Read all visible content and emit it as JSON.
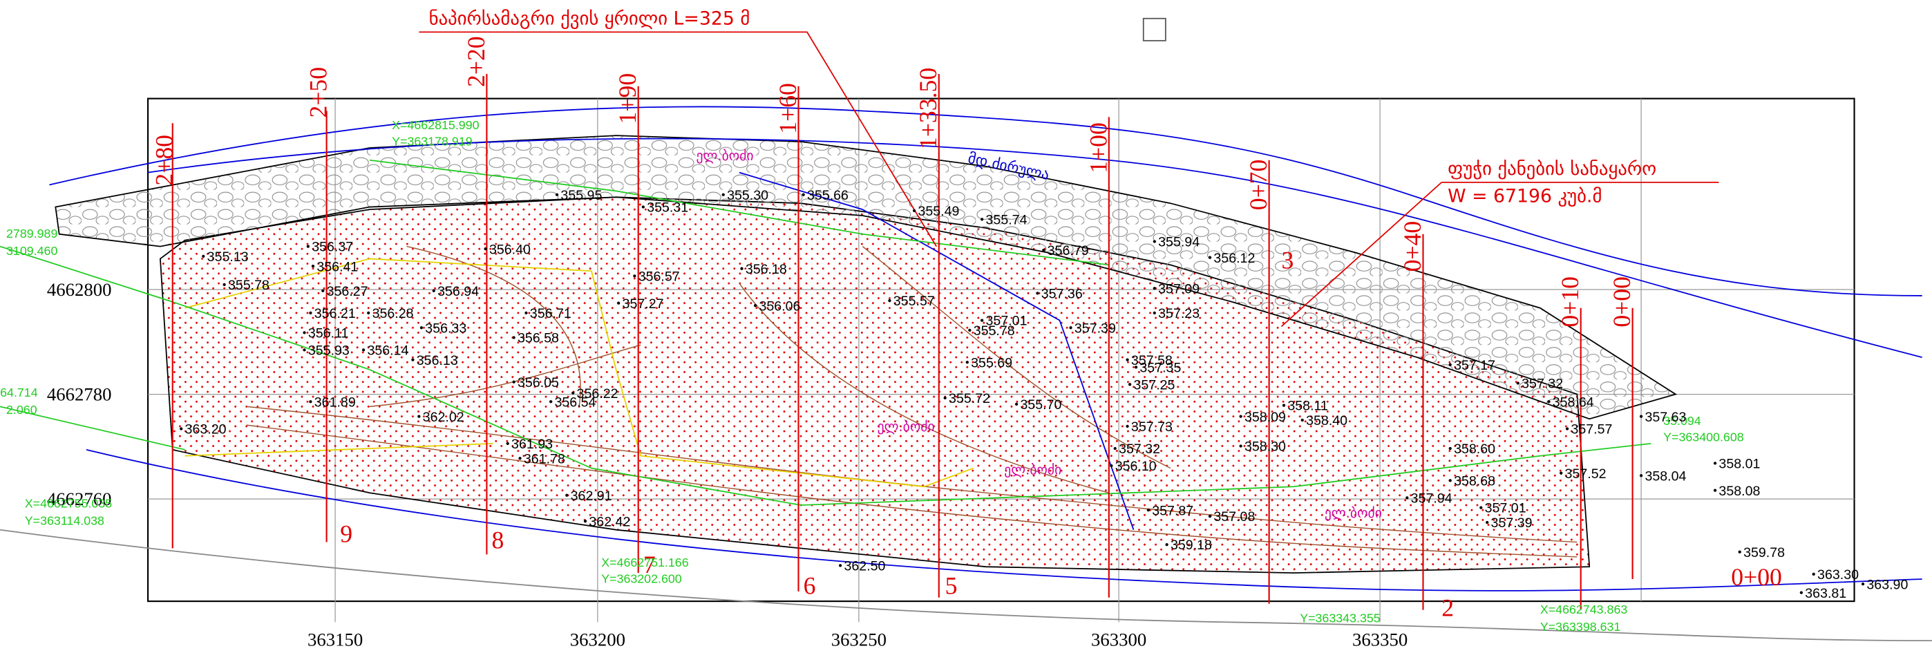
{
  "annotations": {
    "revetment": "ნაპირსამაგრი ქვის ყრილი L=325 მ",
    "dump": "ფუჭი ქანების სანაყარო",
    "volume": "W = 67196 კუბ.მ",
    "river": "მდ.ძირულა"
  },
  "poles": [
    "ელ.ბოძი",
    "ელ.ბოძი",
    "ელ.ბოძი",
    "ელ.ბოძი"
  ],
  "grid": {
    "x_labels": [
      "363150",
      "363200",
      "363250",
      "363300",
      "363350"
    ],
    "y_labels": [
      "4662800",
      "4662780",
      "4662760"
    ]
  },
  "stations": [
    "2+80",
    "2+50",
    "2+20",
    "1+90",
    "1+60",
    "1+33.50",
    "1+00",
    "0+70",
    "0+40",
    "0+10",
    "0+00"
  ],
  "sections": [
    "9",
    "8",
    "7",
    "6",
    "5",
    "3",
    "2",
    "0+00"
  ],
  "coordinates": [
    "X=4662815.990",
    "Y=363178.919",
    "X=4662755.035",
    "Y=363114.038",
    "X=4662751.166",
    "Y=363202.600",
    "X=4662743.863",
    "Y=363398.631",
    "Y=363343.355",
    "2789.989",
    "3109.460",
    "64.714",
    "2.060",
    "35.094",
    "Y=363400.608"
  ],
  "elevations": [
    "355.95",
    "355.30",
    "355.66",
    "355.49",
    "355.74",
    "355.94",
    "356.12",
    "355.31",
    "355.13",
    "355.78",
    "356.41",
    "356.37",
    "356.27",
    "356.21",
    "356.11",
    "355.93",
    "356.14",
    "356.13",
    "356.33",
    "356.58",
    "356.05",
    "356.54",
    "356.22",
    "356.94",
    "356.40",
    "356.71",
    "357.27",
    "356.57",
    "356.18",
    "356.06",
    "355.57",
    "355.78",
    "357.01",
    "357.39",
    "355.69",
    "355.72",
    "355.70",
    "357.58",
    "357.35",
    "357.25",
    "357.73",
    "357.32",
    "356.10",
    "357.87",
    "357.08",
    "359.18",
    "358.30",
    "358.09",
    "358.11",
    "358.40",
    "358.60",
    "358.68",
    "357.94",
    "357.01",
    "357.39",
    "358.64",
    "357.57",
    "357.52",
    "358.04",
    "358.01",
    "358.08",
    "359.78",
    "363.30",
    "363.90",
    "363.81",
    "362.50",
    "362.42",
    "362.91",
    "361.78",
    "361.93",
    "362.02",
    "361.89",
    "363.20",
    "357.63",
    "357.17",
    "357.32",
    "357.23",
    "357.09",
    "356.79",
    "356.28",
    "357.36"
  ]
}
